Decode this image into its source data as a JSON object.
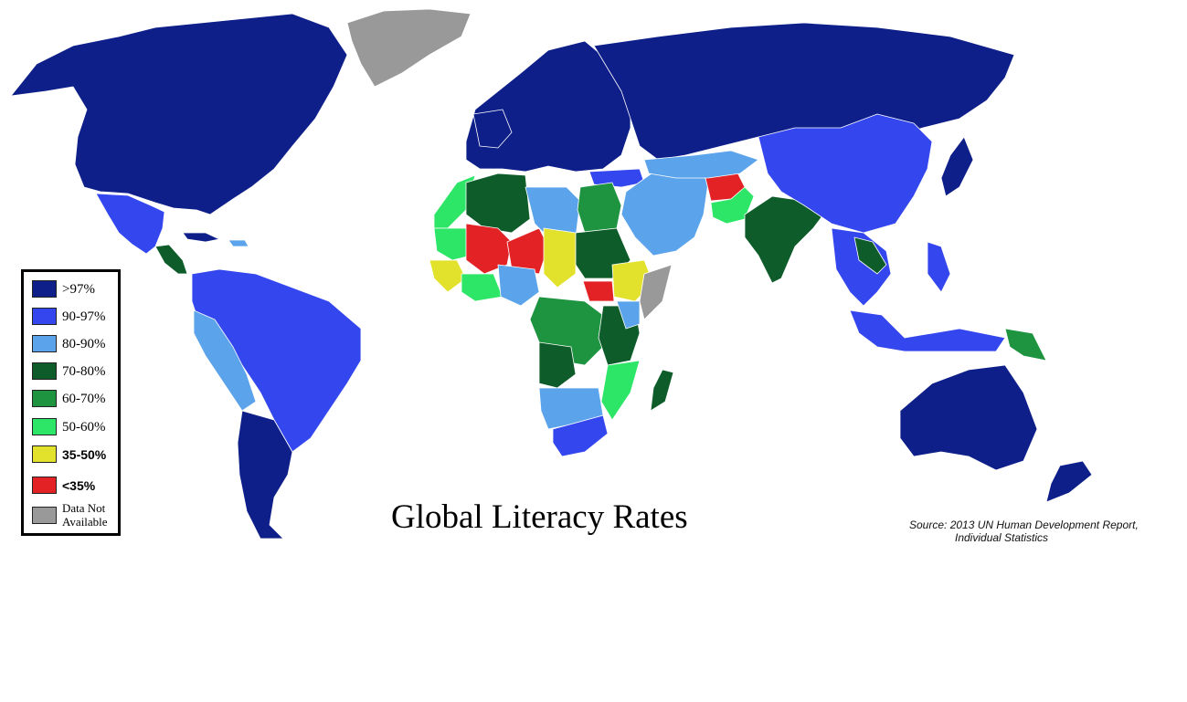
{
  "title": "Global Literacy Rates",
  "source": {
    "line1": "Source: 2013 UN Human Development Report,",
    "line2": "Individual Statistics"
  },
  "legend": [
    {
      "label": ">97%",
      "color": "#0e1f8a"
    },
    {
      "label": "90-97%",
      "color": "#3447ef"
    },
    {
      "label": "80-90%",
      "color": "#5ba3ea"
    },
    {
      "label": "70-80%",
      "color": "#0d5c2a"
    },
    {
      "label": "60-70%",
      "color": "#1e9440"
    },
    {
      "label": "50-60%",
      "color": "#2de566"
    },
    {
      "label": "35-50%",
      "color": "#e2e22c"
    },
    {
      "label": "<35%",
      "color": "#e32226"
    },
    {
      "label": "Data Not Available",
      "color": "#999999"
    }
  ],
  "colors": {
    "gt97": "#0e1f8a",
    "c90_97": "#3447ef",
    "c80_90": "#5ba3ea",
    "c70_80": "#0d5c2a",
    "c60_70": "#1e9440",
    "c50_60": "#2de566",
    "c35_50": "#e2e22c",
    "lt35": "#e32226",
    "na": "#999999"
  }
}
